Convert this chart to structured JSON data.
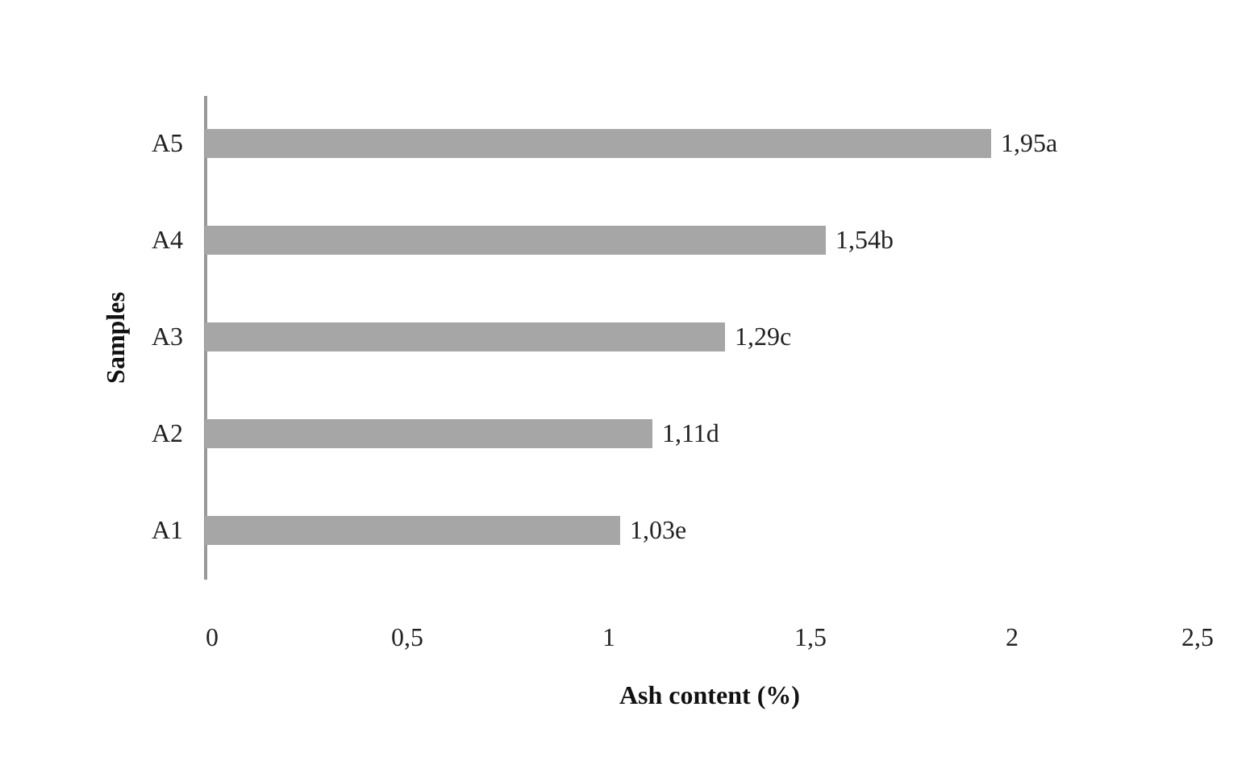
{
  "chart_data": {
    "type": "bar",
    "orientation": "horizontal",
    "xlabel": "Ash content (%)",
    "ylabel": "Samples",
    "categories": [
      "A5",
      "A4",
      "A3",
      "A2",
      "A1"
    ],
    "values": [
      1.95,
      1.54,
      1.29,
      1.11,
      1.03
    ],
    "value_labels": [
      "1,95a",
      "1,54b",
      "1,29c",
      "1,11d",
      "1,03e"
    ],
    "color": "#a6a6a6",
    "xlim": [
      0,
      2.5
    ],
    "xticks": [
      0,
      {
        "value": 0.5,
        "label": "0,5"
      },
      1,
      {
        "value": 1.5,
        "label": "1,5"
      },
      2,
      {
        "value": 2.5,
        "label": "2,5"
      }
    ],
    "grid": false
  }
}
